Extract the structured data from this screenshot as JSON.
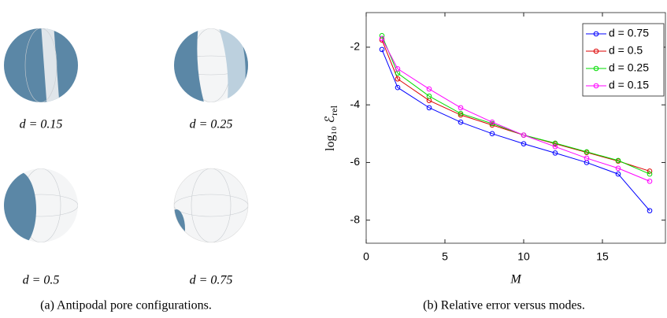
{
  "panel_a": {
    "labels": [
      "d = 0.15",
      "d = 0.25",
      "d = 0.5",
      "d = 0.75"
    ],
    "caption": "(a) Antipodal pore configurations."
  },
  "chart_data": {
    "type": "line",
    "caption": "(b) Relative error versus modes.",
    "xlabel": "M",
    "ylabel": "log₁₀ ℰ",
    "ylabel_sub": "rel",
    "x": [
      1,
      2,
      4,
      6,
      8,
      10,
      12,
      14,
      16,
      18
    ],
    "xlim": [
      0,
      19
    ],
    "xticks": [
      0,
      5,
      10,
      15
    ],
    "ylim": [
      -8.8,
      -0.8
    ],
    "yticks": [
      -2,
      -4,
      -6,
      -8
    ],
    "legend": "upper right",
    "series": [
      {
        "name": "d = 0.75",
        "color": "#0000ff",
        "values": [
          -2.08,
          -3.4,
          -4.1,
          -4.6,
          -5.0,
          -5.35,
          -5.67,
          -6.0,
          -6.4,
          -7.67
        ]
      },
      {
        "name": "d = 0.5",
        "color": "#dd0000",
        "values": [
          -1.75,
          -3.1,
          -3.85,
          -4.35,
          -4.7,
          -5.05,
          -5.35,
          -5.65,
          -5.95,
          -6.3
        ]
      },
      {
        "name": "d = 0.25",
        "color": "#00dd00",
        "values": [
          -1.6,
          -2.9,
          -3.7,
          -4.3,
          -4.65,
          -5.05,
          -5.33,
          -5.63,
          -5.93,
          -6.4
        ]
      },
      {
        "name": "d = 0.15",
        "color": "#ff00ff",
        "values": [
          -1.7,
          -2.75,
          -3.45,
          -4.1,
          -4.6,
          -5.05,
          -5.45,
          -5.85,
          -6.2,
          -6.65
        ]
      }
    ]
  }
}
